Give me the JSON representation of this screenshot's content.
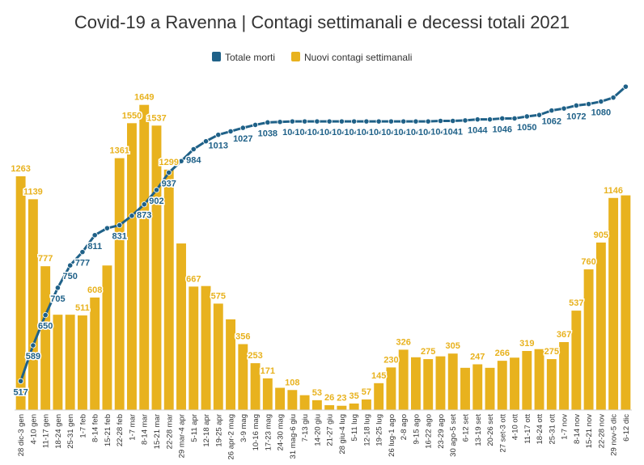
{
  "chart_data": {
    "type": "bar",
    "title": "Covid-19 a Ravenna | Contagi settimanali e decessi totali 2021",
    "legend_position": "top-center",
    "grid": false,
    "categories": [
      "28 dic-3 gen",
      "4-10 gen",
      "11-17 gen",
      "18-24 gen",
      "25-31 gen",
      "1-7 feb",
      "8-14 feb",
      "15-21 feb",
      "22-28 feb",
      "1-7 mar",
      "8-14 mar",
      "15-21 mar",
      "22-28 mar",
      "29 mar-4 apr",
      "5-11 apr",
      "12-18 apr",
      "19-25 apr",
      "26 apr-2 mag",
      "3-9 mag",
      "10-16 mag",
      "17-23 mag",
      "24-30 mag",
      "31 mag-6 giu",
      "7-13 giu",
      "14-20 giu",
      "21-27 giu",
      "28 giu-4 lug",
      "5-11 lug",
      "12-18 lug",
      "19-25 lug",
      "26 lug-1 ago",
      "2-8 ago",
      "9-15 ago",
      "16-22 ago",
      "23-29 ago",
      "30 ago-5 set",
      "6-12 set",
      "13-19 set",
      "20-26 set",
      "27 set-3 ott",
      "4-10 ott",
      "11-17 ott",
      "18-24 ott",
      "25-31 ott",
      "1-7 nov",
      "8-14 nov",
      "15-21 nov",
      "22-28 nov",
      "29 nov-5 dic",
      "6-12 dic"
    ],
    "series": [
      {
        "name": "Nuovi contagi settimanali",
        "kind": "bar",
        "color": "#E8B21E",
        "values": [
          1263,
          1139,
          777,
          null,
          null,
          511,
          608,
          null,
          1361,
          1550,
          1649,
          1537,
          1299,
          null,
          667,
          null,
          575,
          null,
          356,
          253,
          171,
          null,
          108,
          null,
          53,
          26,
          23,
          35,
          57,
          145,
          230,
          326,
          null,
          275,
          null,
          305,
          null,
          247,
          null,
          266,
          null,
          319,
          null,
          275,
          367,
          537,
          760,
          905,
          1146,
          null
        ],
        "shown_values": [
          1263,
          1139,
          777,
          515,
          515,
          511,
          608,
          781,
          1361,
          1550,
          1649,
          1537,
          1299,
          900,
          667,
          670,
          575,
          490,
          356,
          253,
          171,
          120,
          108,
          80,
          53,
          26,
          23,
          35,
          57,
          145,
          230,
          326,
          285,
          275,
          290,
          305,
          228,
          247,
          228,
          266,
          283,
          319,
          329,
          275,
          367,
          537,
          760,
          905,
          1146,
          1160
        ],
        "labels_shown": [
          true,
          true,
          true,
          false,
          false,
          true,
          true,
          false,
          true,
          true,
          true,
          true,
          true,
          false,
          true,
          false,
          true,
          false,
          true,
          true,
          true,
          false,
          true,
          false,
          true,
          true,
          true,
          true,
          true,
          true,
          true,
          true,
          false,
          true,
          false,
          true,
          false,
          true,
          false,
          true,
          false,
          true,
          false,
          true,
          true,
          true,
          true,
          true,
          true,
          false
        ]
      },
      {
        "name": "Totale morti",
        "kind": "line",
        "color": "#1F6188",
        "values": [
          517,
          589,
          650,
          705,
          750,
          777,
          811,
          825,
          831,
          850,
          873,
          902,
          937,
          960,
          984,
          1000,
          1013,
          1020,
          1027,
          1033,
          1038,
          1039,
          1040,
          1040,
          1040,
          1040,
          1040,
          1040,
          1040,
          1040,
          1040,
          1040,
          1040,
          1040,
          1041,
          1041,
          1042,
          1044,
          1044,
          1046,
          1046,
          1050,
          1053,
          1062,
          1066,
          1072,
          1075,
          1080,
          1088,
          1110
        ],
        "labels_shown": [
          true,
          true,
          true,
          true,
          true,
          true,
          true,
          false,
          true,
          false,
          true,
          true,
          true,
          false,
          true,
          false,
          true,
          false,
          true,
          false,
          true,
          false,
          true,
          true,
          true,
          true,
          true,
          true,
          true,
          true,
          true,
          true,
          true,
          true,
          true,
          true,
          false,
          true,
          false,
          true,
          false,
          true,
          false,
          true,
          false,
          true,
          false,
          true,
          false,
          false
        ]
      }
    ],
    "y_bar_range": [
      0,
      1700
    ],
    "y_line_range": [
      480,
      1120
    ]
  }
}
